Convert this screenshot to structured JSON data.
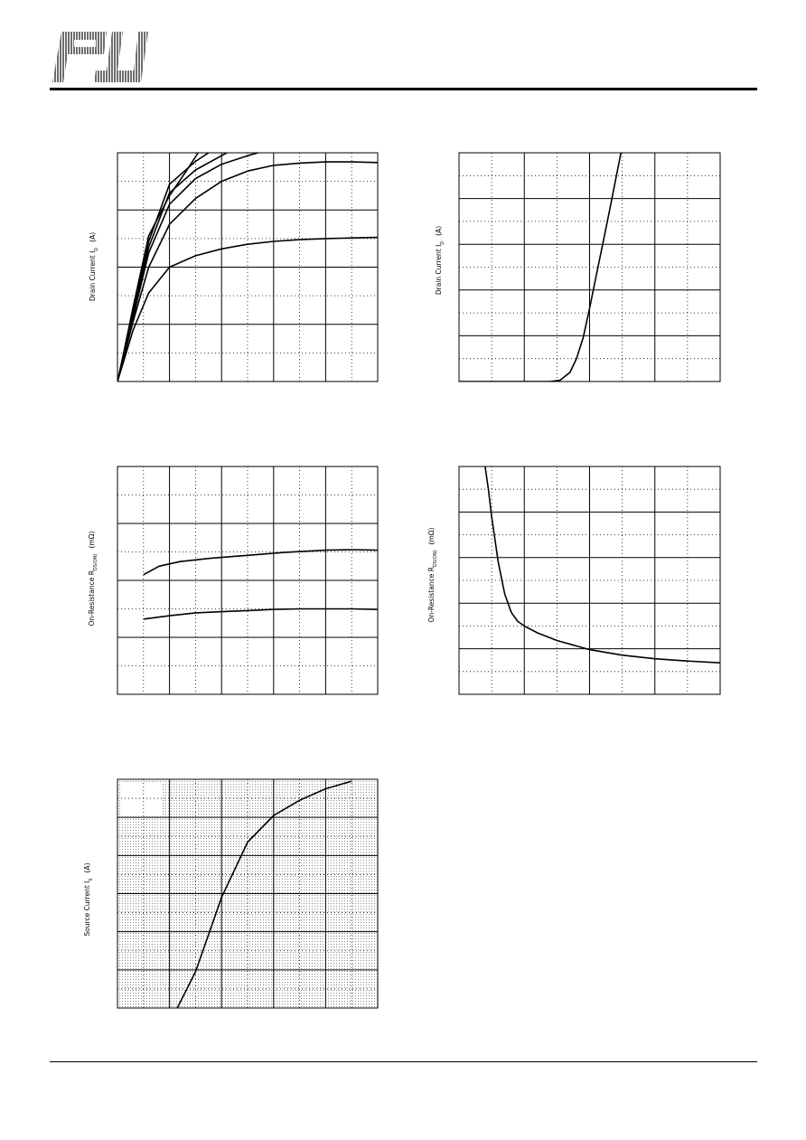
{
  "header": {
    "logo_name": "PJ"
  },
  "chart_data": [
    {
      "id": "output-characteristics",
      "type": "line",
      "ylabel": "Drain Current   I",
      "ylabel_sub": "D",
      "ylabel_unit": "(A)",
      "xlim": [
        0,
        5
      ],
      "ylim": [
        0,
        4
      ],
      "grid": true,
      "series": [
        {
          "x": [
            0,
            0.1,
            0.3,
            0.6,
            1,
            1.5,
            2,
            2.5,
            3,
            3.5,
            4,
            4.5,
            5
          ],
          "y": [
            0,
            0.3,
            0.9,
            1.55,
            2.0,
            2.2,
            2.32,
            2.4,
            2.45,
            2.48,
            2.5,
            2.51,
            2.52
          ]
        },
        {
          "x": [
            0,
            0.1,
            0.3,
            0.6,
            1,
            1.5,
            2,
            2.5,
            3,
            3.5,
            4,
            4.5,
            5
          ],
          "y": [
            0,
            0.35,
            1.05,
            2.0,
            2.75,
            3.2,
            3.5,
            3.68,
            3.78,
            3.82,
            3.84,
            3.84,
            3.83
          ]
        },
        {
          "x": [
            0,
            0.1,
            0.3,
            0.6,
            1,
            1.5,
            2,
            2.5,
            2.7
          ],
          "y": [
            0,
            0.37,
            1.12,
            2.25,
            3.1,
            3.55,
            3.8,
            3.95,
            4.0
          ]
        },
        {
          "x": [
            0,
            0.1,
            0.3,
            0.6,
            1,
            1.5,
            2,
            2.1
          ],
          "y": [
            0,
            0.38,
            1.15,
            2.35,
            3.3,
            3.7,
            3.95,
            4.0
          ]
        },
        {
          "x": [
            0,
            0.1,
            0.3,
            0.6,
            1,
            1.5,
            1.75
          ],
          "y": [
            0,
            0.4,
            1.2,
            2.45,
            3.45,
            3.85,
            4.0
          ]
        },
        {
          "x": [
            0,
            0.1,
            0.3,
            0.6,
            1,
            1.3,
            1.55
          ],
          "y": [
            0,
            0.42,
            1.3,
            2.55,
            3.25,
            3.65,
            4.0
          ]
        }
      ]
    },
    {
      "id": "transfer-characteristics",
      "type": "line",
      "ylabel": "Drain Current   I",
      "ylabel_sub": "D",
      "ylabel_unit": "(A)",
      "xlim": [
        0,
        4
      ],
      "ylim": [
        0,
        5
      ],
      "grid": true,
      "series": [
        {
          "x": [
            0,
            1,
            1.4,
            1.55,
            1.7,
            1.8,
            1.9,
            2.0,
            2.1,
            2.2,
            2.3,
            2.48
          ],
          "y": [
            0,
            0,
            0,
            0.03,
            0.2,
            0.5,
            0.95,
            1.6,
            2.3,
            3.0,
            3.7,
            5.0
          ]
        }
      ]
    },
    {
      "id": "on-resistance-vs-drain-current",
      "type": "line",
      "ylabel": "On-Resistance   R",
      "ylabel_sub": "DS(ON)",
      "ylabel_unit": "(mΩ)",
      "xlim": [
        0,
        5
      ],
      "ylim": [
        0,
        4
      ],
      "grid": true,
      "series": [
        {
          "x": [
            0.5,
            0.8,
            1.2,
            1.8,
            2.5,
            3.2,
            4,
            4.5,
            5
          ],
          "y": [
            2.1,
            2.25,
            2.33,
            2.39,
            2.44,
            2.49,
            2.53,
            2.54,
            2.53
          ]
        },
        {
          "x": [
            0.5,
            1,
            1.5,
            2,
            2.5,
            3,
            3.5,
            4,
            4.5,
            5
          ],
          "y": [
            1.32,
            1.38,
            1.43,
            1.45,
            1.47,
            1.49,
            1.5,
            1.5,
            1.5,
            1.49
          ]
        }
      ]
    },
    {
      "id": "on-resistance-vs-gate-voltage",
      "type": "line",
      "ylabel": "On-Resistance   R",
      "ylabel_sub": "DS(ON)",
      "ylabel_unit": "(mΩ)",
      "xlim": [
        0,
        4
      ],
      "ylim": [
        0,
        5
      ],
      "grid": true,
      "series": [
        {
          "x": [
            0.4,
            0.45,
            0.5,
            0.6,
            0.7,
            0.8,
            0.9,
            1.0,
            1.2,
            1.5,
            2,
            2.5,
            3,
            3.5,
            4
          ],
          "y": [
            5.0,
            4.5,
            3.9,
            2.9,
            2.2,
            1.8,
            1.6,
            1.5,
            1.35,
            1.18,
            0.98,
            0.86,
            0.78,
            0.73,
            0.69
          ]
        }
      ]
    },
    {
      "id": "body-diode-forward",
      "type": "line",
      "ylabel": "Source Current   I",
      "ylabel_sub": "S",
      "ylabel_unit": "(A)",
      "xlim": [
        0,
        5
      ],
      "ylim": [
        0,
        6
      ],
      "grid": true,
      "series": [
        {
          "x": [
            1.15,
            1.5,
            2.0,
            2.5,
            3.0,
            3.5,
            4.0,
            4.5
          ],
          "y": [
            0,
            0.95,
            2.9,
            4.35,
            5.05,
            5.45,
            5.75,
            5.95
          ]
        }
      ]
    }
  ]
}
